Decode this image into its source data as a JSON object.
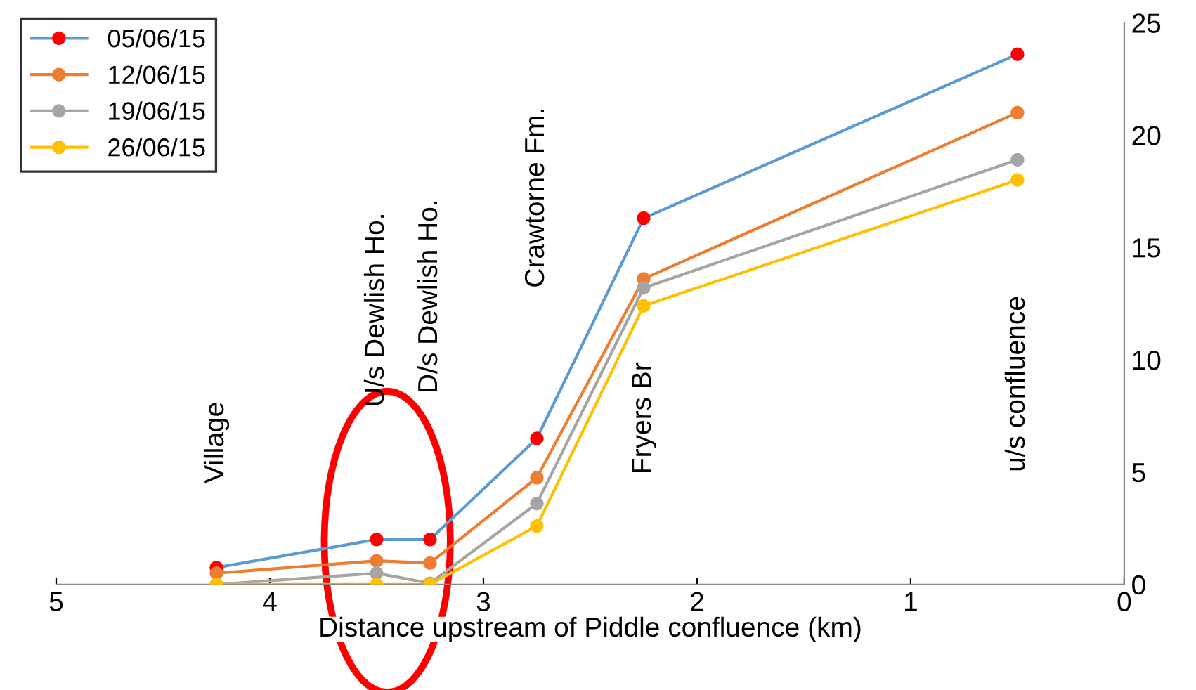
{
  "chart_data": {
    "type": "line",
    "xlabel": "Distance upstream of Piddle confluence (km)",
    "x": [
      4.25,
      3.5,
      3.25,
      2.75,
      2.25,
      0.5
    ],
    "series": [
      {
        "name": "05/06/15",
        "color": "#5b9bd5",
        "colors": [
          "#ff0000",
          "#ff0000",
          "#ff0000",
          "#ff0000",
          "#ff0000",
          "#ff0000"
        ],
        "values": [
          0.75,
          2.0,
          2.0,
          6.5,
          16.3,
          23.6
        ]
      },
      {
        "name": "12/06/15",
        "color": "#ed7d31",
        "values": [
          0.5,
          1.05,
          0.95,
          4.75,
          13.6,
          21.0
        ]
      },
      {
        "name": "19/06/15",
        "color": "#a5a5a5",
        "values": [
          0.0,
          0.5,
          0.05,
          3.6,
          13.2,
          18.9
        ]
      },
      {
        "name": "26/06/15",
        "color": "#ffc000",
        "values": [
          0.0,
          0.0,
          0.0,
          2.6,
          12.4,
          18.0
        ]
      }
    ],
    "xlim": [
      5,
      0
    ],
    "xticks": [
      5,
      4,
      3,
      2,
      1,
      0
    ],
    "ylim": [
      0,
      25
    ],
    "yticks": [
      0,
      5,
      10,
      15,
      20,
      25
    ],
    "annotations": [
      "Village",
      "U/s Dewlish Ho.",
      "D/s Dewlish Ho.",
      "Crawtorne Fm.",
      "Fryers Br",
      "u/s confluence"
    ],
    "marker": "circle",
    "line_style": "solid",
    "legend": "top left",
    "grid": false
  }
}
